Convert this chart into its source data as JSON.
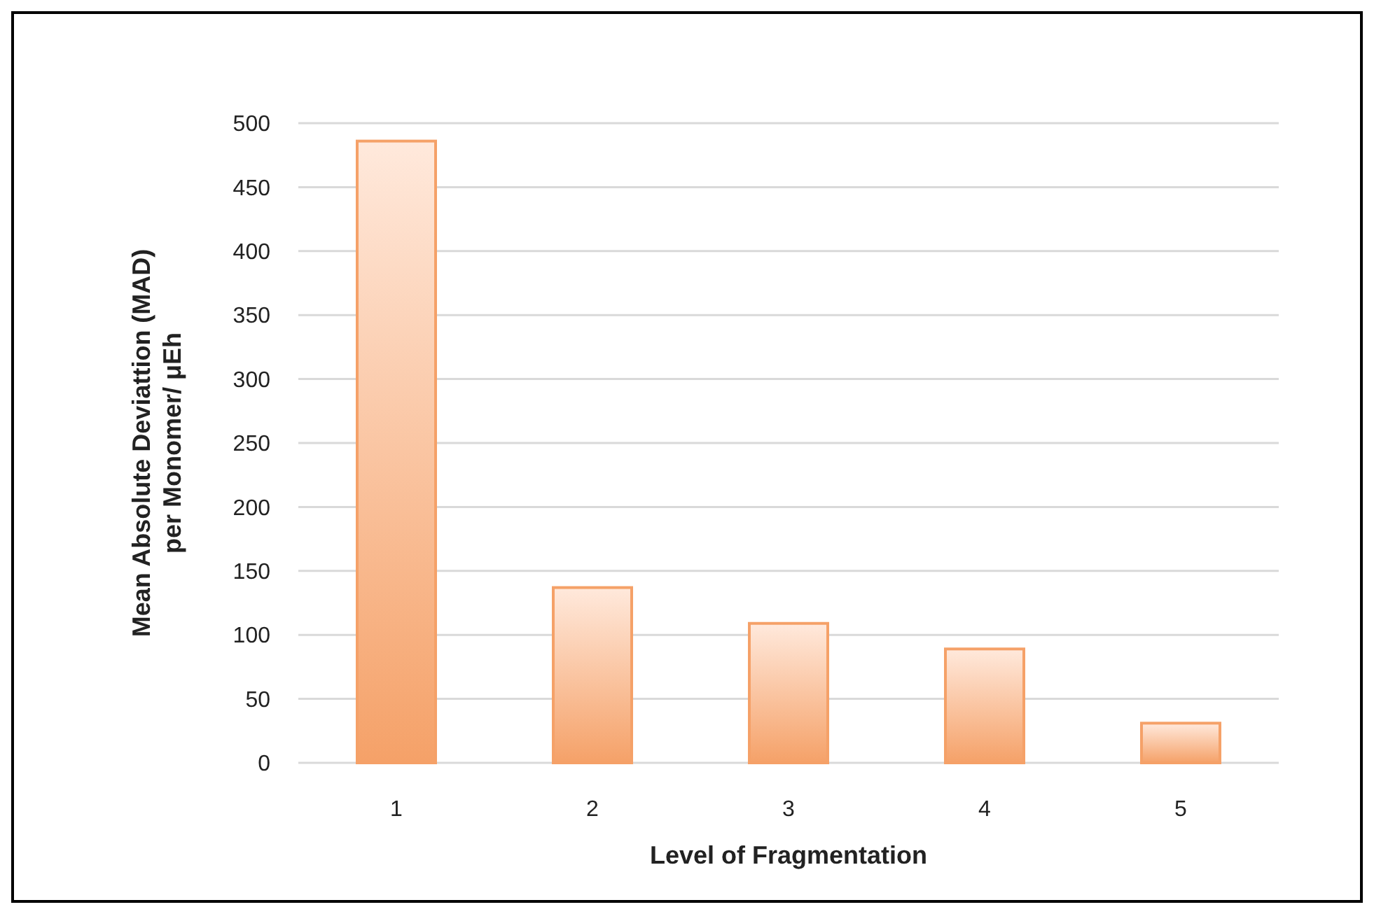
{
  "chart_data": {
    "type": "bar",
    "xlabel": "Level of Fragmentation",
    "ylabel": "Mean Absolute  Deviattion (MAD)\nper Monomer/ μEh",
    "categories": [
      "1",
      "2",
      "3",
      "4",
      "5"
    ],
    "values": [
      486,
      137,
      109,
      89,
      31
    ],
    "color": "#f5a168",
    "ylim": [
      0,
      500
    ],
    "yticks": [
      0,
      50,
      100,
      150,
      200,
      250,
      300,
      350,
      400,
      450,
      500
    ],
    "grid": "y"
  }
}
